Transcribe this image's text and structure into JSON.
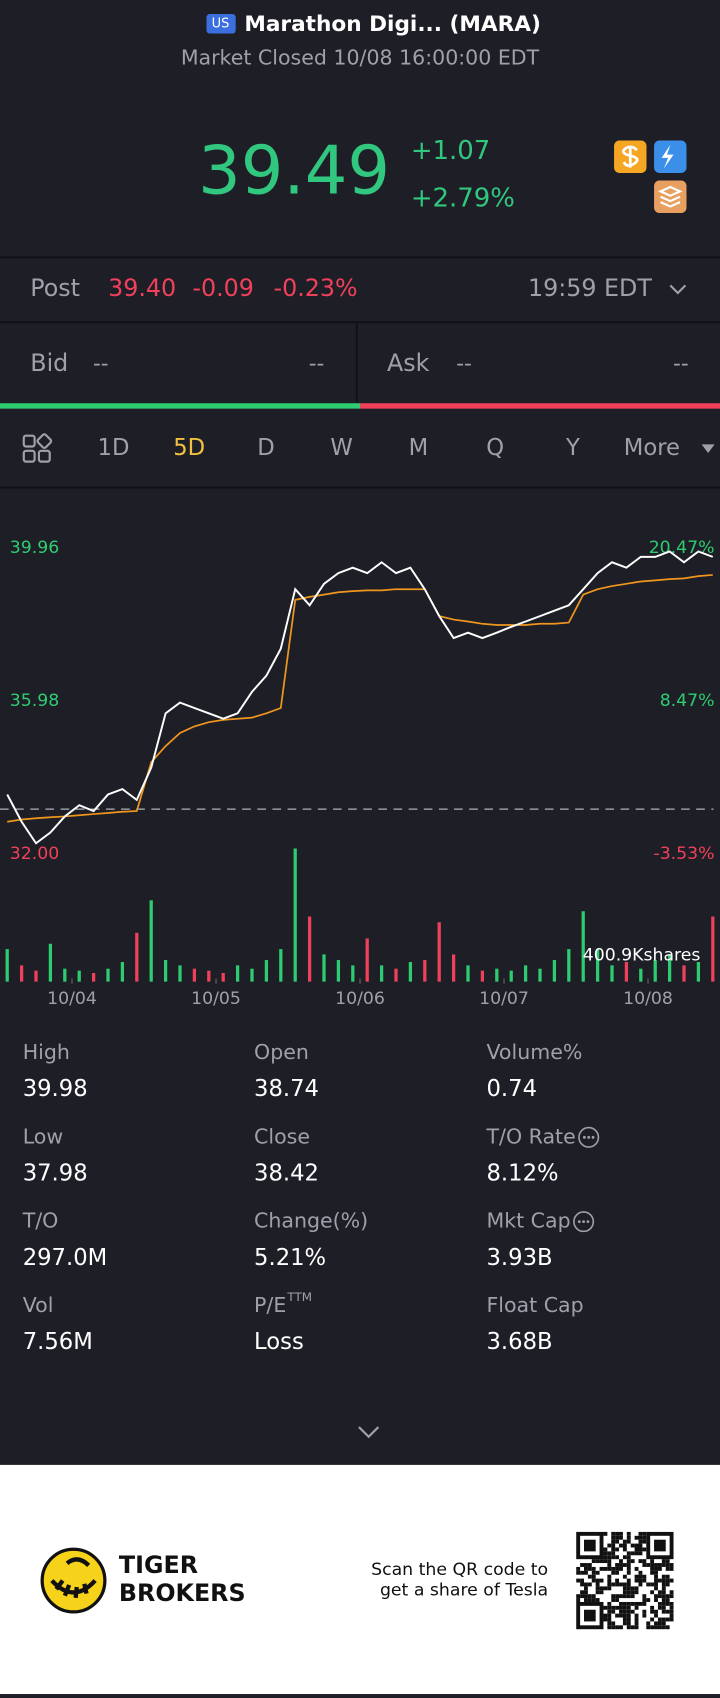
{
  "header": {
    "market": "US",
    "title": "Marathon Digi... (MARA)",
    "status": "Market Closed 10/08 16:00:00 EDT"
  },
  "quote": {
    "price": "39.49",
    "change": "+1.07",
    "change_pct": "+2.79%"
  },
  "post": {
    "label": "Post",
    "price": "39.40",
    "change": "-0.09",
    "change_pct": "-0.23%",
    "time": "19:59 EDT"
  },
  "bid": {
    "label": "Bid",
    "price": "--",
    "size": "--"
  },
  "ask": {
    "label": "Ask",
    "price": "--",
    "size": "--"
  },
  "tabs": [
    "1D",
    "5D",
    "D",
    "W",
    "M",
    "Q",
    "Y",
    "More"
  ],
  "active_tab": "5D",
  "chart": {
    "type": "line",
    "x": [
      0,
      1,
      2,
      3,
      4,
      5,
      6,
      7,
      8,
      9,
      10,
      11,
      12,
      13,
      14,
      15,
      16,
      17,
      18,
      19,
      20,
      21,
      22,
      23,
      24,
      25,
      26,
      27,
      28,
      29,
      30,
      31,
      32,
      33,
      34,
      35,
      36,
      37,
      38,
      39,
      40,
      41,
      42,
      43,
      44,
      45,
      46,
      47,
      48,
      49
    ],
    "xlim": [
      -0.5,
      49.5
    ],
    "xticks": [
      {
        "value": 4.5,
        "label": "10/04"
      },
      {
        "value": 14.5,
        "label": "10/05"
      },
      {
        "value": 24.5,
        "label": "10/06"
      },
      {
        "value": 34.5,
        "label": "10/07"
      },
      {
        "value": 44.5,
        "label": "10/08"
      }
    ],
    "ylim": [
      32,
      41.28
    ],
    "yticks": [
      {
        "value": 39.96,
        "label": "39.96"
      },
      {
        "value": 35.98,
        "label": "35.98"
      },
      {
        "value": 32,
        "label": "32.00"
      }
    ],
    "y2ticks": [
      {
        "value": 39.96,
        "label": "20.47%"
      },
      {
        "value": 35.98,
        "label": "8.47%"
      },
      {
        "value": 32,
        "label": "-3.53%"
      }
    ],
    "reference_line": 33.17,
    "series": [
      {
        "color": "#ffffff",
        "values": [
          33.55,
          32.84,
          32.28,
          32.56,
          32.98,
          33.27,
          33.12,
          33.55,
          33.69,
          33.41,
          34.25,
          35.66,
          35.94,
          35.8,
          35.66,
          35.52,
          35.66,
          36.22,
          36.64,
          37.34,
          38.89,
          38.47,
          39.03,
          39.31,
          39.45,
          39.31,
          39.59,
          39.31,
          39.45,
          38.89,
          38.19,
          37.62,
          37.76,
          37.62,
          37.76,
          37.91,
          38.05,
          38.19,
          38.33,
          38.47,
          38.89,
          39.31,
          39.59,
          39.45,
          39.73,
          39.73,
          39.87,
          39.59,
          39.87,
          39.73
        ]
      },
      {
        "color": "#f0961e",
        "values": [
          32.84,
          32.9,
          32.93,
          32.96,
          32.98,
          33.01,
          33.04,
          33.07,
          33.1,
          33.12,
          34.39,
          34.81,
          35.15,
          35.32,
          35.43,
          35.49,
          35.52,
          35.55,
          35.66,
          35.8,
          38.61,
          38.69,
          38.75,
          38.81,
          38.84,
          38.86,
          38.86,
          38.89,
          38.89,
          38.89,
          38.19,
          38.1,
          38.05,
          37.99,
          37.96,
          37.96,
          37.96,
          37.99,
          37.99,
          38.02,
          38.75,
          38.89,
          38.97,
          39.03,
          39.09,
          39.12,
          39.15,
          39.17,
          39.23,
          39.26
        ]
      }
    ],
    "volume": [
      98,
      49,
      33,
      114,
      39,
      33,
      26,
      39,
      59,
      147,
      245,
      65,
      49,
      39,
      33,
      26,
      49,
      39,
      65,
      98,
      401,
      196,
      82,
      65,
      49,
      130,
      49,
      39,
      59,
      65,
      179,
      82,
      49,
      33,
      39,
      33,
      49,
      39,
      65,
      98,
      212,
      98,
      49,
      59,
      39,
      65,
      82,
      49,
      59,
      196
    ],
    "volume_ylim": [
      0,
      420
    ],
    "volume_label": "400.9Kshares",
    "up_color": "#2ecc71",
    "down_color": "#f0405a"
  },
  "stats": [
    {
      "label": "High",
      "value": "39.98"
    },
    {
      "label": "Open",
      "value": "38.74"
    },
    {
      "label": "Volume%",
      "value": "0.74"
    },
    {
      "label": "Low",
      "value": "37.98"
    },
    {
      "label": "Close",
      "value": "38.42"
    },
    {
      "label": "T/O Rate",
      "value": "8.12%"
    },
    {
      "label": "T/O",
      "value": "297.0M"
    },
    {
      "label": "Change(%)",
      "value": "5.21%"
    },
    {
      "label": "Mkt Cap",
      "value": "3.93B"
    },
    {
      "label": "Vol",
      "value": "7.56M"
    },
    {
      "label": "P/E",
      "sup": "TTM",
      "value": "Loss"
    },
    {
      "label": "Float Cap",
      "value": "3.68B"
    }
  ],
  "footer": {
    "brand": [
      "TIGER",
      "BROKERS"
    ],
    "promo": [
      "Scan the QR code to",
      "get a share of Tesla"
    ]
  }
}
